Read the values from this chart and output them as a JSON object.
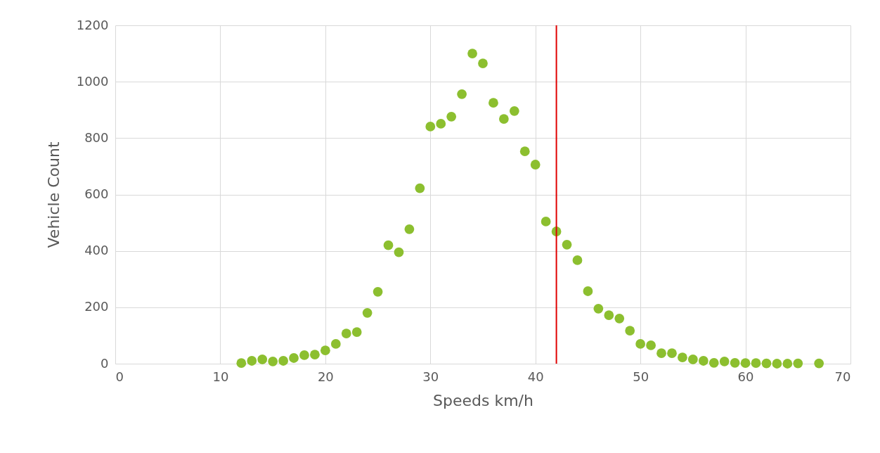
{
  "chart_data": {
    "type": "scatter",
    "xlabel": "Speeds km/h",
    "ylabel": "Vehicle Count",
    "x": [
      12,
      13,
      14,
      15,
      16,
      17,
      18,
      19,
      20,
      21,
      22,
      23,
      24,
      25,
      26,
      27,
      28,
      29,
      30,
      31,
      32,
      33,
      34,
      35,
      36,
      37,
      38,
      39,
      40,
      41,
      42,
      43,
      44,
      45,
      46,
      47,
      48,
      49,
      50,
      51,
      52,
      53,
      54,
      55,
      56,
      57,
      58,
      59,
      60,
      61,
      62,
      63,
      64,
      65,
      67
    ],
    "series": [
      {
        "color": "#8cbf2f",
        "values": [
          2,
          10,
          15,
          8,
          10,
          20,
          30,
          32,
          47,
          70,
          107,
          112,
          180,
          255,
          420,
          395,
          477,
          622,
          841,
          851,
          876,
          956,
          1100,
          1065,
          925,
          868,
          896,
          753,
          706,
          504,
          469,
          422,
          367,
          257,
          195,
          172,
          160,
          117,
          70,
          65,
          37,
          37,
          22,
          15,
          10,
          3,
          8,
          3,
          2,
          2,
          1,
          0,
          0,
          1,
          1
        ]
      }
    ],
    "xlim": [
      0,
      70
    ],
    "xticks": [
      0,
      10,
      20,
      30,
      40,
      50,
      60,
      70
    ],
    "ylim": [
      0,
      1200
    ],
    "yticks": [
      0,
      200,
      400,
      600,
      800,
      1000,
      1200
    ],
    "grid": true,
    "marker": "circle",
    "ref_lines": [
      {
        "axis": "x",
        "value": 42,
        "color": "#e00000"
      }
    ]
  }
}
